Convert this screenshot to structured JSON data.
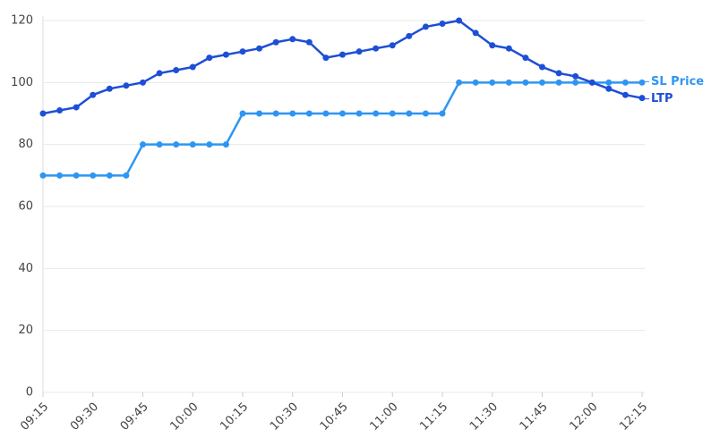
{
  "chart_data": {
    "type": "line",
    "categories": [
      "09:15",
      null,
      null,
      "09:30",
      null,
      null,
      "09:45",
      null,
      null,
      "10:00",
      null,
      null,
      "10:15",
      null,
      null,
      "10:30",
      null,
      null,
      "10:45",
      null,
      null,
      "11:00",
      null,
      null,
      "11:15",
      null,
      null,
      "11:30",
      null,
      null,
      "11:45",
      null,
      null,
      "12:00",
      null,
      null,
      "12:15"
    ],
    "series": [
      {
        "name": "SL Price",
        "color": "#2f95f2",
        "values": [
          70,
          70,
          70,
          70,
          70,
          70,
          80,
          80,
          80,
          80,
          80,
          80,
          90,
          90,
          90,
          90,
          90,
          90,
          90,
          90,
          90,
          90,
          90,
          90,
          90,
          100,
          100,
          100,
          100,
          100,
          100,
          100,
          100,
          100,
          100,
          100,
          100
        ]
      },
      {
        "name": "LTP",
        "color": "#1d4fd6",
        "values": [
          90,
          91,
          92,
          96,
          98,
          99,
          100,
          103,
          104,
          105,
          108,
          109,
          110,
          111,
          113,
          114,
          113,
          108,
          109,
          110,
          111,
          112,
          115,
          118,
          119,
          120,
          116,
          112,
          111,
          108,
          105,
          103,
          102,
          100,
          98,
          96,
          95
        ]
      }
    ],
    "ylim": [
      0,
      120
    ],
    "yticks": [
      0,
      20,
      40,
      60,
      80,
      100,
      120
    ],
    "grid": true
  }
}
